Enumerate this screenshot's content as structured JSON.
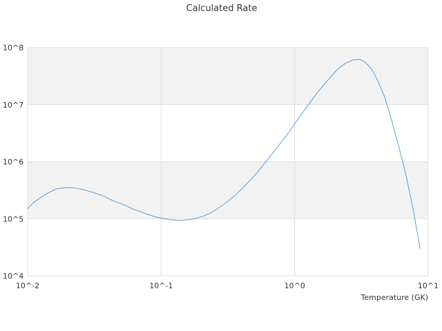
{
  "chart_data": {
    "type": "line",
    "title": "Calculated Rate",
    "xlabel": "Temperature (GK)",
    "ylabel": "",
    "x_scale": "log",
    "y_scale": "log",
    "xlim": [
      0.01,
      10
    ],
    "ylim": [
      10000,
      100000000
    ],
    "x_ticks": [
      {
        "value": 0.01,
        "label": "10^-2"
      },
      {
        "value": 0.1,
        "label": "10^-1"
      },
      {
        "value": 1,
        "label": "10^0"
      },
      {
        "value": 10,
        "label": "10^1"
      }
    ],
    "y_ticks": [
      {
        "value": 10000,
        "label": "10^4"
      },
      {
        "value": 100000,
        "label": "10^5"
      },
      {
        "value": 1000000,
        "label": "10^6"
      },
      {
        "value": 10000000,
        "label": "10^7"
      },
      {
        "value": 100000000,
        "label": "10^8"
      }
    ],
    "grid": true,
    "alternating_bands": true,
    "legend": "none",
    "colors": {
      "line": "#5b9bd5",
      "band": "#f2f2f2",
      "grid": "#dddddd",
      "text": "#333333"
    },
    "series": [
      {
        "x": [
          0.01,
          0.011,
          0.0125,
          0.0145,
          0.0165,
          0.019,
          0.022,
          0.026,
          0.031,
          0.037,
          0.044,
          0.053,
          0.063,
          0.075,
          0.09,
          0.105,
          0.12,
          0.138,
          0.158,
          0.18,
          0.205,
          0.235,
          0.27,
          0.31,
          0.36,
          0.42,
          0.5,
          0.6,
          0.72,
          0.87,
          1.05,
          1.25,
          1.5,
          1.8,
          2.1,
          2.4,
          2.75,
          3.1,
          3.4,
          3.8,
          4.2,
          4.7,
          5.3,
          6.0,
          6.8,
          7.7,
          8.7
        ],
        "y": [
          150000,
          190000,
          235000,
          290000,
          335000,
          350000,
          348000,
          325000,
          290000,
          250000,
          205000,
          175000,
          145000,
          125000,
          108000,
          101000,
          96000,
          93000,
          96000,
          101000,
          110000,
          126000,
          155000,
          195000,
          260000,
          370000,
          570000,
          950000,
          1650000,
          2900000,
          5400000,
          9600000,
          17000000,
          28000000,
          42000000,
          53000000,
          61000000,
          62000000,
          55000000,
          41000000,
          26000000,
          14000000,
          5500000,
          1900000,
          600000,
          150000,
          30000
        ]
      }
    ]
  }
}
